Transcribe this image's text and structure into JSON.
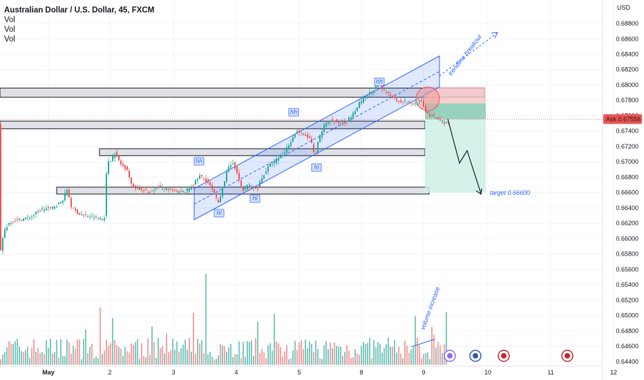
{
  "header": {
    "title": "Australian Dollar / U.S. Dollar, 45, FXCM",
    "indicators": [
      "Vol",
      "Vol",
      "Vol"
    ]
  },
  "price_axis": {
    "currency": "USD",
    "ask_label": "Ask",
    "ask_value": "0.67556"
  },
  "annotations": {
    "trendline_breakout": "trendline breakout",
    "volume_increase": "volume increase",
    "target": "target 0.66600",
    "pivots": [
      "hh",
      "hh",
      "hh",
      "hl",
      "hl",
      "hl"
    ]
  },
  "colors": {
    "up": "#26a69a",
    "down": "#ef5350",
    "channel": "#2962ff",
    "zone_fill": "#d1d4dc",
    "stop_fill": "#f7c5c5",
    "target_fill": "#cdeee6"
  },
  "chart_data": {
    "type": "candlestick",
    "symbol": "AUDUSD",
    "timeframe": "45",
    "x_ticks": [
      "May",
      "2",
      "3",
      "4",
      "5",
      "8",
      "9",
      "10",
      "11",
      "12"
    ],
    "y_ticks": [
      "0.68800",
      "0.68600",
      "0.68400",
      "0.68200",
      "0.68000",
      "0.67800",
      "0.67600",
      "0.67400",
      "0.67200",
      "0.67000",
      "0.66800",
      "0.66600",
      "0.66400",
      "0.66200",
      "0.66000",
      "0.65800",
      "0.65600",
      "0.65400",
      "0.65200",
      "0.65000",
      "0.64800",
      "0.64600",
      "0.64400"
    ],
    "ylim": [
      0.6434,
      0.6898
    ],
    "price_path": [
      [
        0,
        0.6575
      ],
      [
        6,
        0.661
      ],
      [
        15,
        0.6622
      ],
      [
        30,
        0.6625
      ],
      [
        45,
        0.6628
      ],
      [
        60,
        0.6638
      ],
      [
        75,
        0.664
      ],
      [
        90,
        0.6648
      ],
      [
        98,
        0.6665
      ],
      [
        104,
        0.664
      ],
      [
        115,
        0.6632
      ],
      [
        130,
        0.6629
      ],
      [
        145,
        0.6627
      ],
      [
        150,
        0.6625
      ],
      [
        153,
        0.6632
      ],
      [
        155,
        0.67
      ],
      [
        160,
        0.6702
      ],
      [
        167,
        0.6712
      ],
      [
        175,
        0.6697
      ],
      [
        185,
        0.669
      ],
      [
        190,
        0.667
      ],
      [
        200,
        0.6665
      ],
      [
        215,
        0.666
      ],
      [
        230,
        0.6668
      ],
      [
        245,
        0.6663
      ],
      [
        260,
        0.666
      ],
      [
        270,
        0.6662
      ],
      [
        280,
        0.667
      ],
      [
        290,
        0.6682
      ],
      [
        300,
        0.6675
      ],
      [
        310,
        0.666
      ],
      [
        316,
        0.6645
      ],
      [
        322,
        0.6665
      ],
      [
        330,
        0.669
      ],
      [
        338,
        0.67
      ],
      [
        345,
        0.668
      ],
      [
        352,
        0.6662
      ],
      [
        360,
        0.667
      ],
      [
        372,
        0.6665
      ],
      [
        380,
        0.668
      ],
      [
        390,
        0.6695
      ],
      [
        400,
        0.6702
      ],
      [
        410,
        0.671
      ],
      [
        420,
        0.6725
      ],
      [
        430,
        0.674
      ],
      [
        440,
        0.6735
      ],
      [
        450,
        0.673
      ],
      [
        456,
        0.6705
      ],
      [
        462,
        0.673
      ],
      [
        470,
        0.6748
      ],
      [
        480,
        0.6755
      ],
      [
        490,
        0.675
      ],
      [
        500,
        0.6752
      ],
      [
        510,
        0.676
      ],
      [
        520,
        0.6775
      ],
      [
        530,
        0.6785
      ],
      [
        540,
        0.6793
      ],
      [
        548,
        0.68
      ],
      [
        556,
        0.6792
      ],
      [
        566,
        0.6787
      ],
      [
        576,
        0.678
      ],
      [
        590,
        0.6778
      ],
      [
        600,
        0.6775
      ],
      [
        610,
        0.678
      ],
      [
        615,
        0.6768
      ],
      [
        622,
        0.676
      ],
      [
        632,
        0.6757
      ],
      [
        642,
        0.6752
      ],
      [
        648,
        0.675
      ]
    ],
    "levels": [
      {
        "name": "resistance-zone",
        "from": 0.6784,
        "to": 0.6796
      },
      {
        "name": "support-zone-1",
        "from": 0.6743,
        "to": 0.6753
      },
      {
        "name": "support-zone-2",
        "from": 0.6708,
        "to": 0.6717
      },
      {
        "name": "support-zone-3",
        "from": 0.6658,
        "to": 0.6667
      }
    ],
    "position": {
      "side": "short",
      "entry": 0.67556,
      "stop": 0.67976,
      "target": 0.666
    }
  }
}
